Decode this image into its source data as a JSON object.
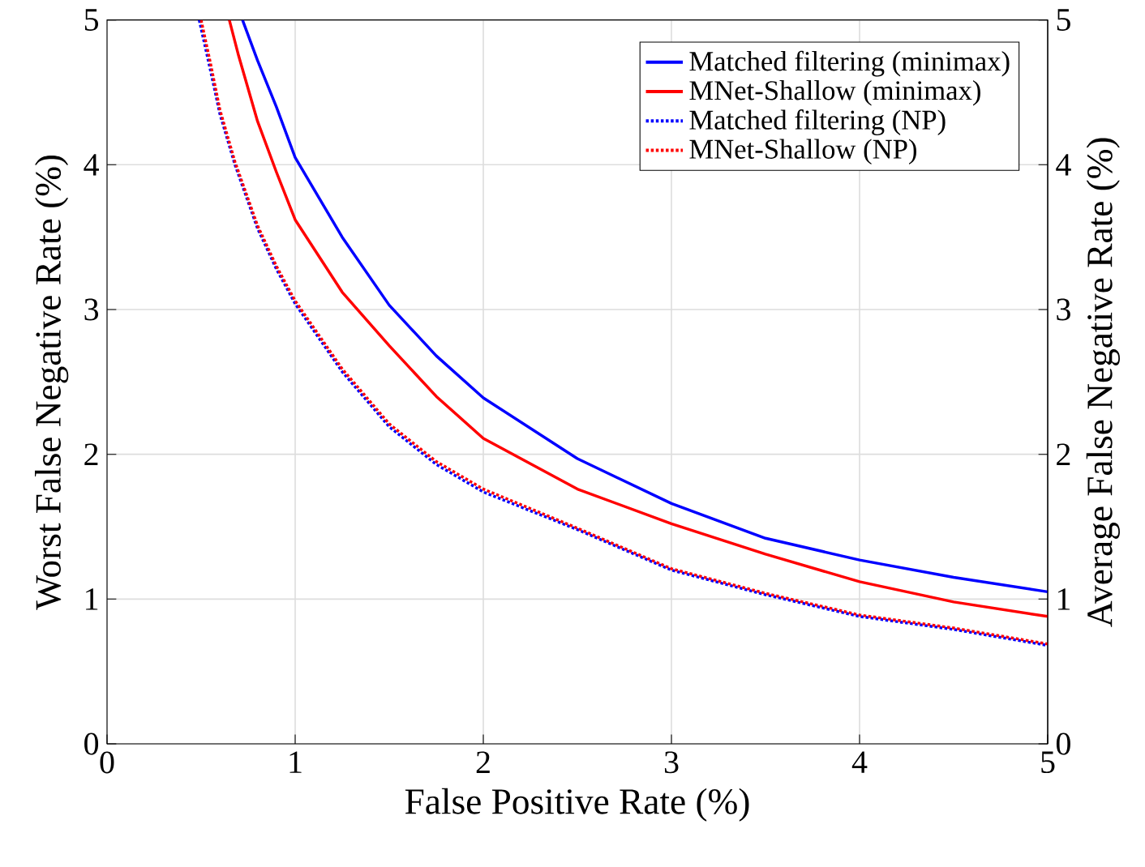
{
  "chart_data": {
    "type": "line",
    "xlabel": "False Positive Rate (%)",
    "ylabel": "Worst False Negative Rate (%)",
    "y2label": "Average False Negative Rate (%)",
    "xlim": [
      0,
      5
    ],
    "ylim": [
      0,
      5
    ],
    "y2lim": [
      0,
      5
    ],
    "xticks": [
      0,
      1,
      2,
      3,
      4,
      5
    ],
    "yticks": [
      0,
      1,
      2,
      3,
      4,
      5
    ],
    "y2ticks": [
      0,
      1,
      2,
      3,
      4,
      5
    ],
    "grid": true,
    "legend": "top right",
    "series": [
      {
        "name": "Matched filtering (minimax)",
        "color": "#0000ff",
        "line_style": "solid",
        "x": [
          0.72,
          0.8,
          0.9,
          1,
          1.25,
          1.5,
          1.75,
          2,
          2.5,
          3,
          3.5,
          4,
          4.5,
          5
        ],
        "values": [
          5,
          4.72,
          4.4,
          4.05,
          3.5,
          3.03,
          2.68,
          2.39,
          1.97,
          1.66,
          1.42,
          1.27,
          1.15,
          1.05
        ]
      },
      {
        "name": "MNet-Shallow (minimax)",
        "color": "#ff0000",
        "line_style": "solid",
        "x": [
          0.65,
          0.7,
          0.8,
          0.9,
          1,
          1.25,
          1.5,
          1.75,
          2,
          2.5,
          3,
          3.5,
          4,
          4.5,
          5
        ],
        "values": [
          5,
          4.75,
          4.3,
          3.95,
          3.62,
          3.12,
          2.75,
          2.4,
          2.11,
          1.76,
          1.52,
          1.31,
          1.12,
          0.98,
          0.88
        ]
      },
      {
        "name": "Matched filtering (NP)",
        "color": "#0000ff",
        "line_style": "dotted",
        "x": [
          0.49,
          0.55,
          0.6,
          0.68,
          0.8,
          0.9,
          1,
          1.25,
          1.5,
          1.75,
          2,
          2.5,
          3,
          3.5,
          4,
          4.5,
          5
        ],
        "values": [
          5,
          4.65,
          4.35,
          4,
          3.56,
          3.28,
          3.04,
          2.57,
          2.19,
          1.93,
          1.74,
          1.48,
          1.2,
          1.03,
          0.88,
          0.79,
          0.68
        ]
      },
      {
        "name": "MNet-Shallow (NP)",
        "color": "#ff0000",
        "line_style": "dotted",
        "x": [
          0.5,
          0.55,
          0.6,
          0.68,
          0.8,
          0.9,
          1,
          1.25,
          1.5,
          1.75,
          2,
          2.5,
          3,
          3.5,
          4,
          4.5,
          5
        ],
        "values": [
          5,
          4.7,
          4.38,
          4.02,
          3.58,
          3.3,
          3.06,
          2.59,
          2.21,
          1.95,
          1.76,
          1.49,
          1.21,
          1.04,
          0.89,
          0.8,
          0.69
        ]
      }
    ]
  }
}
